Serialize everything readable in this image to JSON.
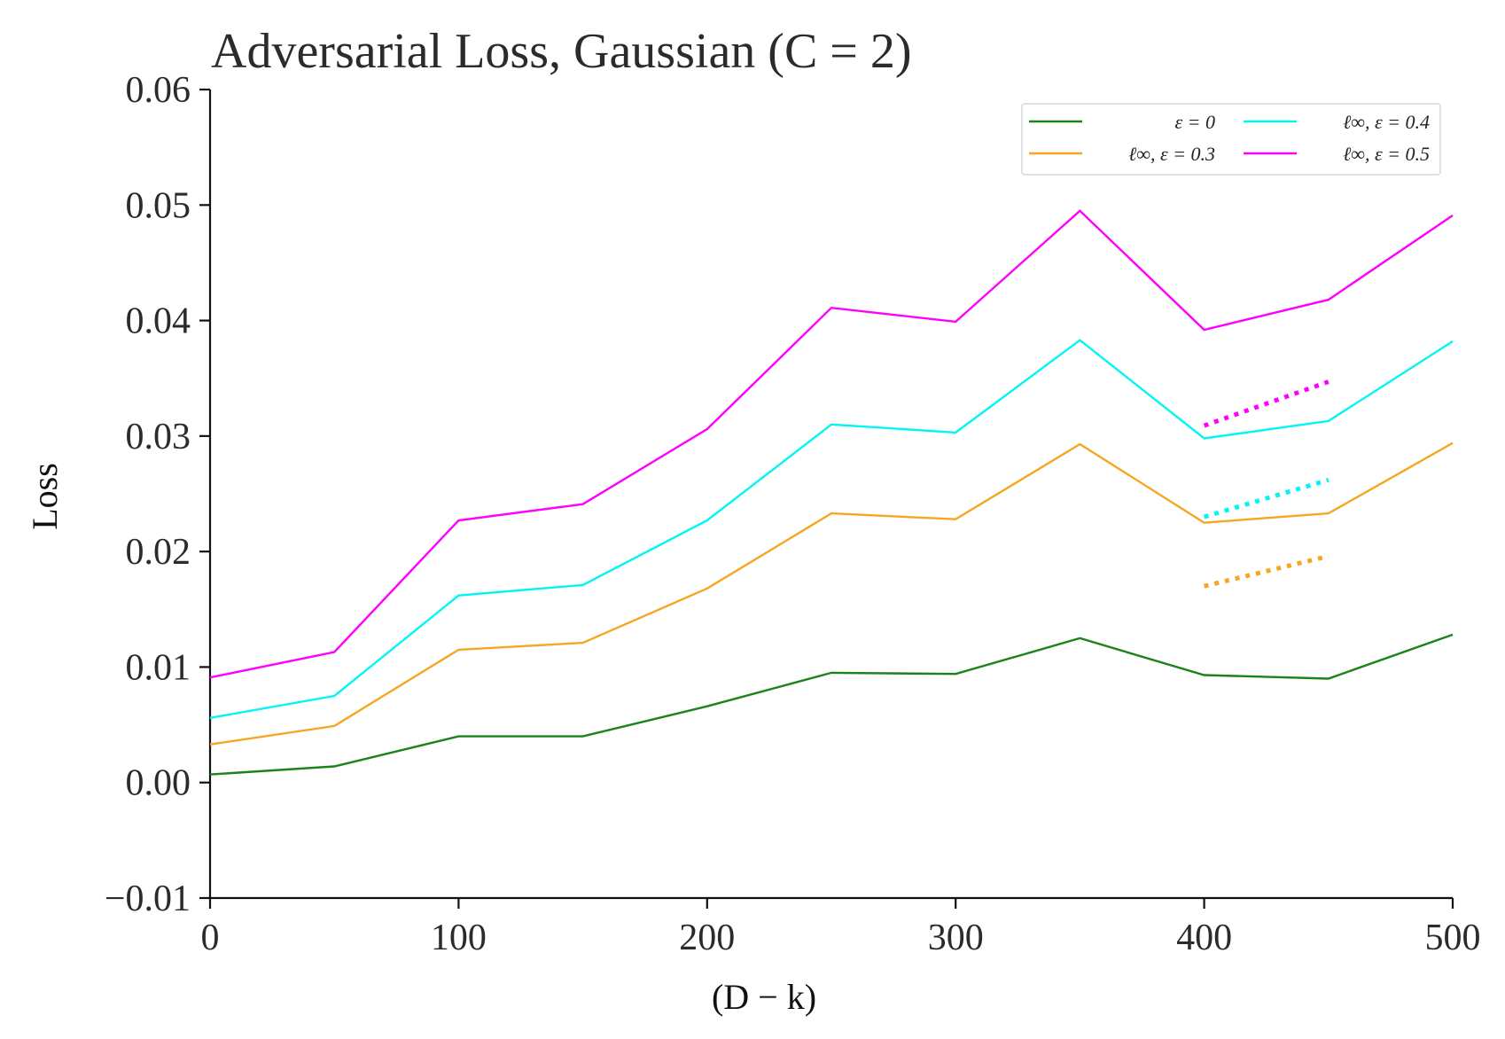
{
  "chart_data": {
    "type": "line",
    "title": "Adversarial Loss, Gaussian (C = 2)",
    "xlabel": "(D − k)",
    "ylabel": "Loss",
    "xlim": [
      0,
      500
    ],
    "ylim": [
      -0.01,
      0.06
    ],
    "xticks": [
      0,
      100,
      200,
      300,
      400,
      500
    ],
    "xtick_labels": [
      "0",
      "100",
      "200",
      "300",
      "400",
      "500"
    ],
    "yticks": [
      -0.01,
      0.0,
      0.01,
      0.02,
      0.03,
      0.04,
      0.05,
      0.06
    ],
    "ytick_labels": [
      "−0.01",
      "0.00",
      "0.01",
      "0.02",
      "0.03",
      "0.04",
      "0.05",
      "0.06"
    ],
    "grid": false,
    "legend_position": "top-right",
    "x": [
      0,
      50,
      100,
      150,
      200,
      250,
      300,
      350,
      400,
      450,
      500
    ],
    "series": [
      {
        "name": "ε = 0",
        "color": "#1a841a",
        "values": [
          0.0007,
          0.0014,
          0.004,
          0.004,
          0.0066,
          0.0095,
          0.0094,
          0.0125,
          0.0093,
          0.009,
          0.0128
        ]
      },
      {
        "name": "ℓ∞, ε = 0.3",
        "color": "#f5a623",
        "values": [
          0.0033,
          0.0049,
          0.0115,
          0.0121,
          0.0168,
          0.0233,
          0.0228,
          0.0293,
          0.0225,
          0.0233,
          0.0294
        ]
      },
      {
        "name": "ℓ∞, ε = 0.4",
        "color": "#00f5f5",
        "values": [
          0.0056,
          0.0075,
          0.0162,
          0.0171,
          0.0227,
          0.031,
          0.0303,
          0.0383,
          0.0298,
          0.0313,
          0.0382
        ]
      },
      {
        "name": "ℓ∞, ε = 0.5",
        "color": "#ff00ff",
        "values": [
          0.0091,
          0.0113,
          0.0227,
          0.0241,
          0.0306,
          0.0411,
          0.0399,
          0.0495,
          0.0392,
          0.0418,
          0.0491
        ]
      }
    ],
    "dotted_segments": [
      {
        "color": "#f5a623",
        "x": [
          400,
          450
        ],
        "values": [
          0.017,
          0.0196
        ]
      },
      {
        "color": "#00f5f5",
        "x": [
          400,
          450
        ],
        "values": [
          0.023,
          0.0262
        ]
      },
      {
        "color": "#ff00ff",
        "x": [
          400,
          450
        ],
        "values": [
          0.0309,
          0.0347
        ]
      }
    ],
    "legend_columns": [
      [
        "ε = 0",
        "ℓ∞, ε = 0.3"
      ],
      [
        "ℓ∞, ε = 0.4",
        "ℓ∞, ε = 0.5"
      ]
    ]
  }
}
